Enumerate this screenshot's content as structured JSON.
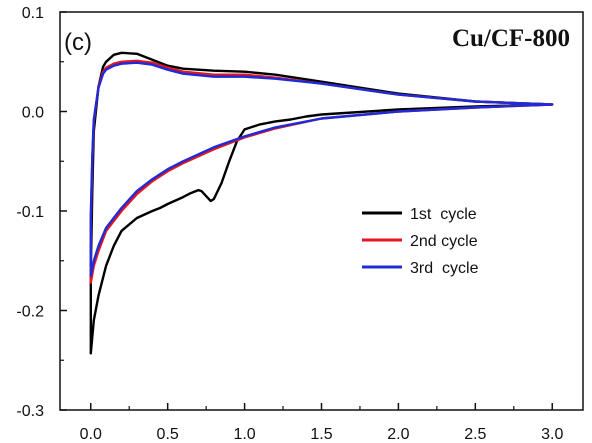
{
  "chart_data": {
    "type": "line",
    "panel_label": "(c)",
    "title": "Cu/CF-800",
    "xlabel": "",
    "ylabel": "",
    "xlim": [
      -0.2,
      3.2
    ],
    "ylim": [
      -0.3,
      0.1
    ],
    "x_ticks": [
      0.0,
      0.5,
      1.0,
      1.5,
      2.0,
      2.5,
      3.0
    ],
    "x_tick_labels": [
      "0.0",
      "0.5",
      "1.0",
      "1.5",
      "2.0",
      "2.5",
      "3.0"
    ],
    "y_ticks": [
      -0.3,
      -0.2,
      -0.1,
      0.0,
      0.1
    ],
    "y_tick_labels": [
      "-0.3",
      "-0.2",
      "-0.1",
      "0.0",
      "0.1"
    ],
    "grid": false,
    "legend_position": "center-right",
    "series": [
      {
        "name": "1st  cycle",
        "color": "#000000",
        "x": [
          3.0,
          2.5,
          2.0,
          1.6,
          1.5,
          1.4,
          1.3,
          1.2,
          1.1,
          1.0,
          0.95,
          0.9,
          0.85,
          0.8,
          0.78,
          0.75,
          0.72,
          0.7,
          0.65,
          0.6,
          0.5,
          0.45,
          0.4,
          0.3,
          0.2,
          0.15,
          0.1,
          0.05,
          0.02,
          0.0,
          0.0,
          0.01,
          0.02,
          0.05,
          0.08,
          0.1,
          0.15,
          0.2,
          0.3,
          0.35,
          0.4,
          0.5,
          0.6,
          0.8,
          1.0,
          1.2,
          1.5,
          2.0,
          2.5,
          3.0
        ],
        "y": [
          0.007,
          0.005,
          0.002,
          -0.002,
          -0.003,
          -0.005,
          -0.008,
          -0.01,
          -0.013,
          -0.018,
          -0.03,
          -0.05,
          -0.072,
          -0.088,
          -0.09,
          -0.085,
          -0.08,
          -0.079,
          -0.082,
          -0.086,
          -0.093,
          -0.097,
          -0.1,
          -0.107,
          -0.12,
          -0.135,
          -0.155,
          -0.185,
          -0.21,
          -0.243,
          -0.16,
          -0.08,
          -0.02,
          0.025,
          0.045,
          0.05,
          0.057,
          0.059,
          0.058,
          0.055,
          0.052,
          0.046,
          0.043,
          0.041,
          0.04,
          0.037,
          0.03,
          0.018,
          0.01,
          0.007
        ]
      },
      {
        "name": "2nd cycle",
        "color": "#e8141c",
        "x": [
          3.0,
          2.5,
          2.0,
          1.5,
          1.2,
          1.0,
          0.8,
          0.6,
          0.5,
          0.4,
          0.3,
          0.2,
          0.1,
          0.05,
          0.02,
          0.0,
          0.0,
          0.01,
          0.02,
          0.05,
          0.08,
          0.1,
          0.15,
          0.2,
          0.3,
          0.35,
          0.4,
          0.5,
          0.6,
          0.8,
          1.0,
          1.2,
          1.5,
          2.0,
          2.5,
          3.0
        ],
        "y": [
          0.007,
          0.004,
          0.0,
          -0.007,
          -0.017,
          -0.026,
          -0.038,
          -0.052,
          -0.06,
          -0.07,
          -0.083,
          -0.1,
          -0.12,
          -0.14,
          -0.155,
          -0.172,
          -0.11,
          -0.05,
          -0.01,
          0.025,
          0.04,
          0.044,
          0.048,
          0.05,
          0.051,
          0.05,
          0.049,
          0.044,
          0.04,
          0.037,
          0.037,
          0.034,
          0.028,
          0.017,
          0.01,
          0.007
        ]
      },
      {
        "name": "3rd  cycle",
        "color": "#1e2bd6",
        "x": [
          3.0,
          2.5,
          2.0,
          1.5,
          1.2,
          1.0,
          0.8,
          0.6,
          0.5,
          0.4,
          0.3,
          0.2,
          0.1,
          0.05,
          0.02,
          0.0,
          0.0,
          0.01,
          0.02,
          0.05,
          0.08,
          0.1,
          0.15,
          0.2,
          0.3,
          0.35,
          0.4,
          0.5,
          0.6,
          0.8,
          1.0,
          1.2,
          1.5,
          2.0,
          2.5,
          3.0
        ],
        "y": [
          0.007,
          0.004,
          0.0,
          -0.007,
          -0.016,
          -0.025,
          -0.036,
          -0.05,
          -0.058,
          -0.068,
          -0.08,
          -0.097,
          -0.117,
          -0.135,
          -0.15,
          -0.165,
          -0.105,
          -0.045,
          -0.008,
          0.024,
          0.038,
          0.042,
          0.046,
          0.048,
          0.049,
          0.048,
          0.047,
          0.042,
          0.038,
          0.035,
          0.035,
          0.033,
          0.028,
          0.017,
          0.01,
          0.007
        ]
      }
    ]
  }
}
